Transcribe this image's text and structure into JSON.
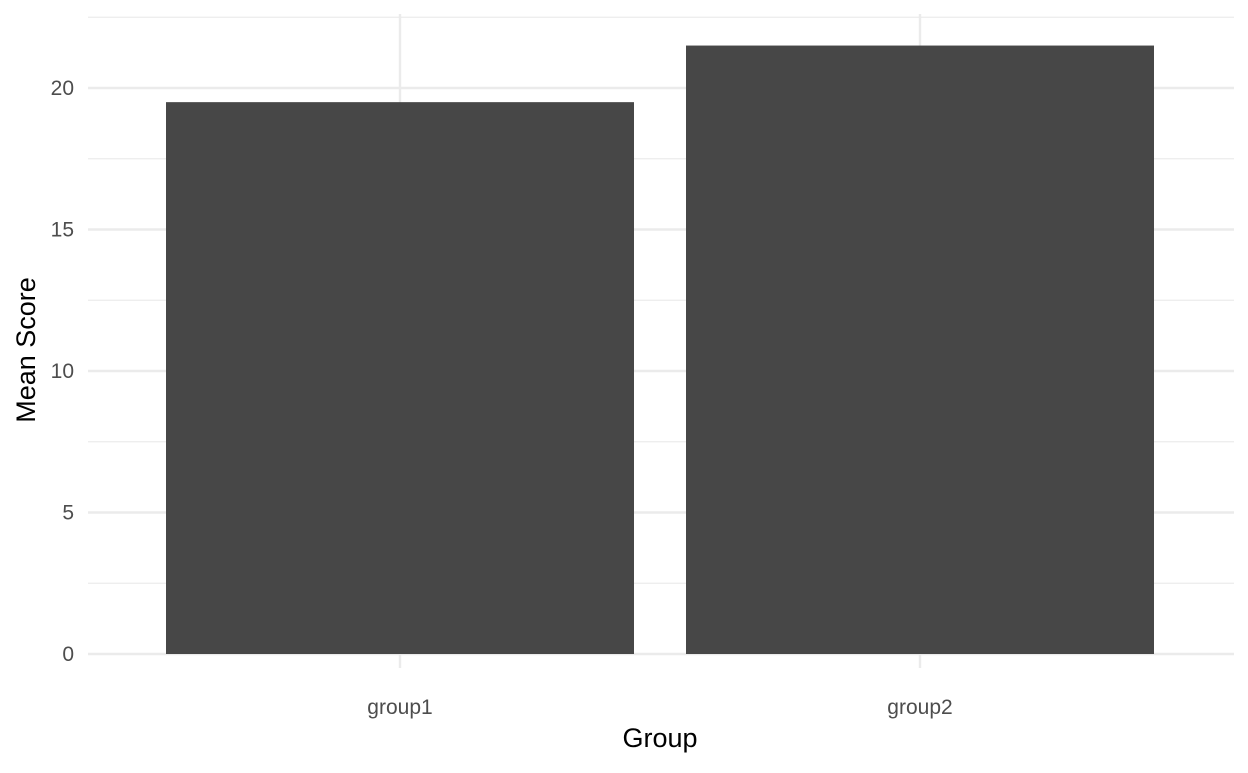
{
  "chart_data": {
    "type": "bar",
    "title": "",
    "xlabel": "Group",
    "ylabel": "Mean Score",
    "categories": [
      "group1",
      "group2"
    ],
    "values": [
      19.5,
      21.5
    ],
    "ylim": [
      0,
      22.5
    ],
    "yticks": [
      "0",
      "5",
      "10",
      "15",
      "20"
    ],
    "ytick_values": [
      0,
      5,
      10,
      15,
      20
    ],
    "grid": true,
    "legend": "none",
    "bar_color": "#474747",
    "grid_color": "#ebebeb",
    "axis_text_color": "#4d4d4d",
    "axis_title_color": "#000000"
  }
}
